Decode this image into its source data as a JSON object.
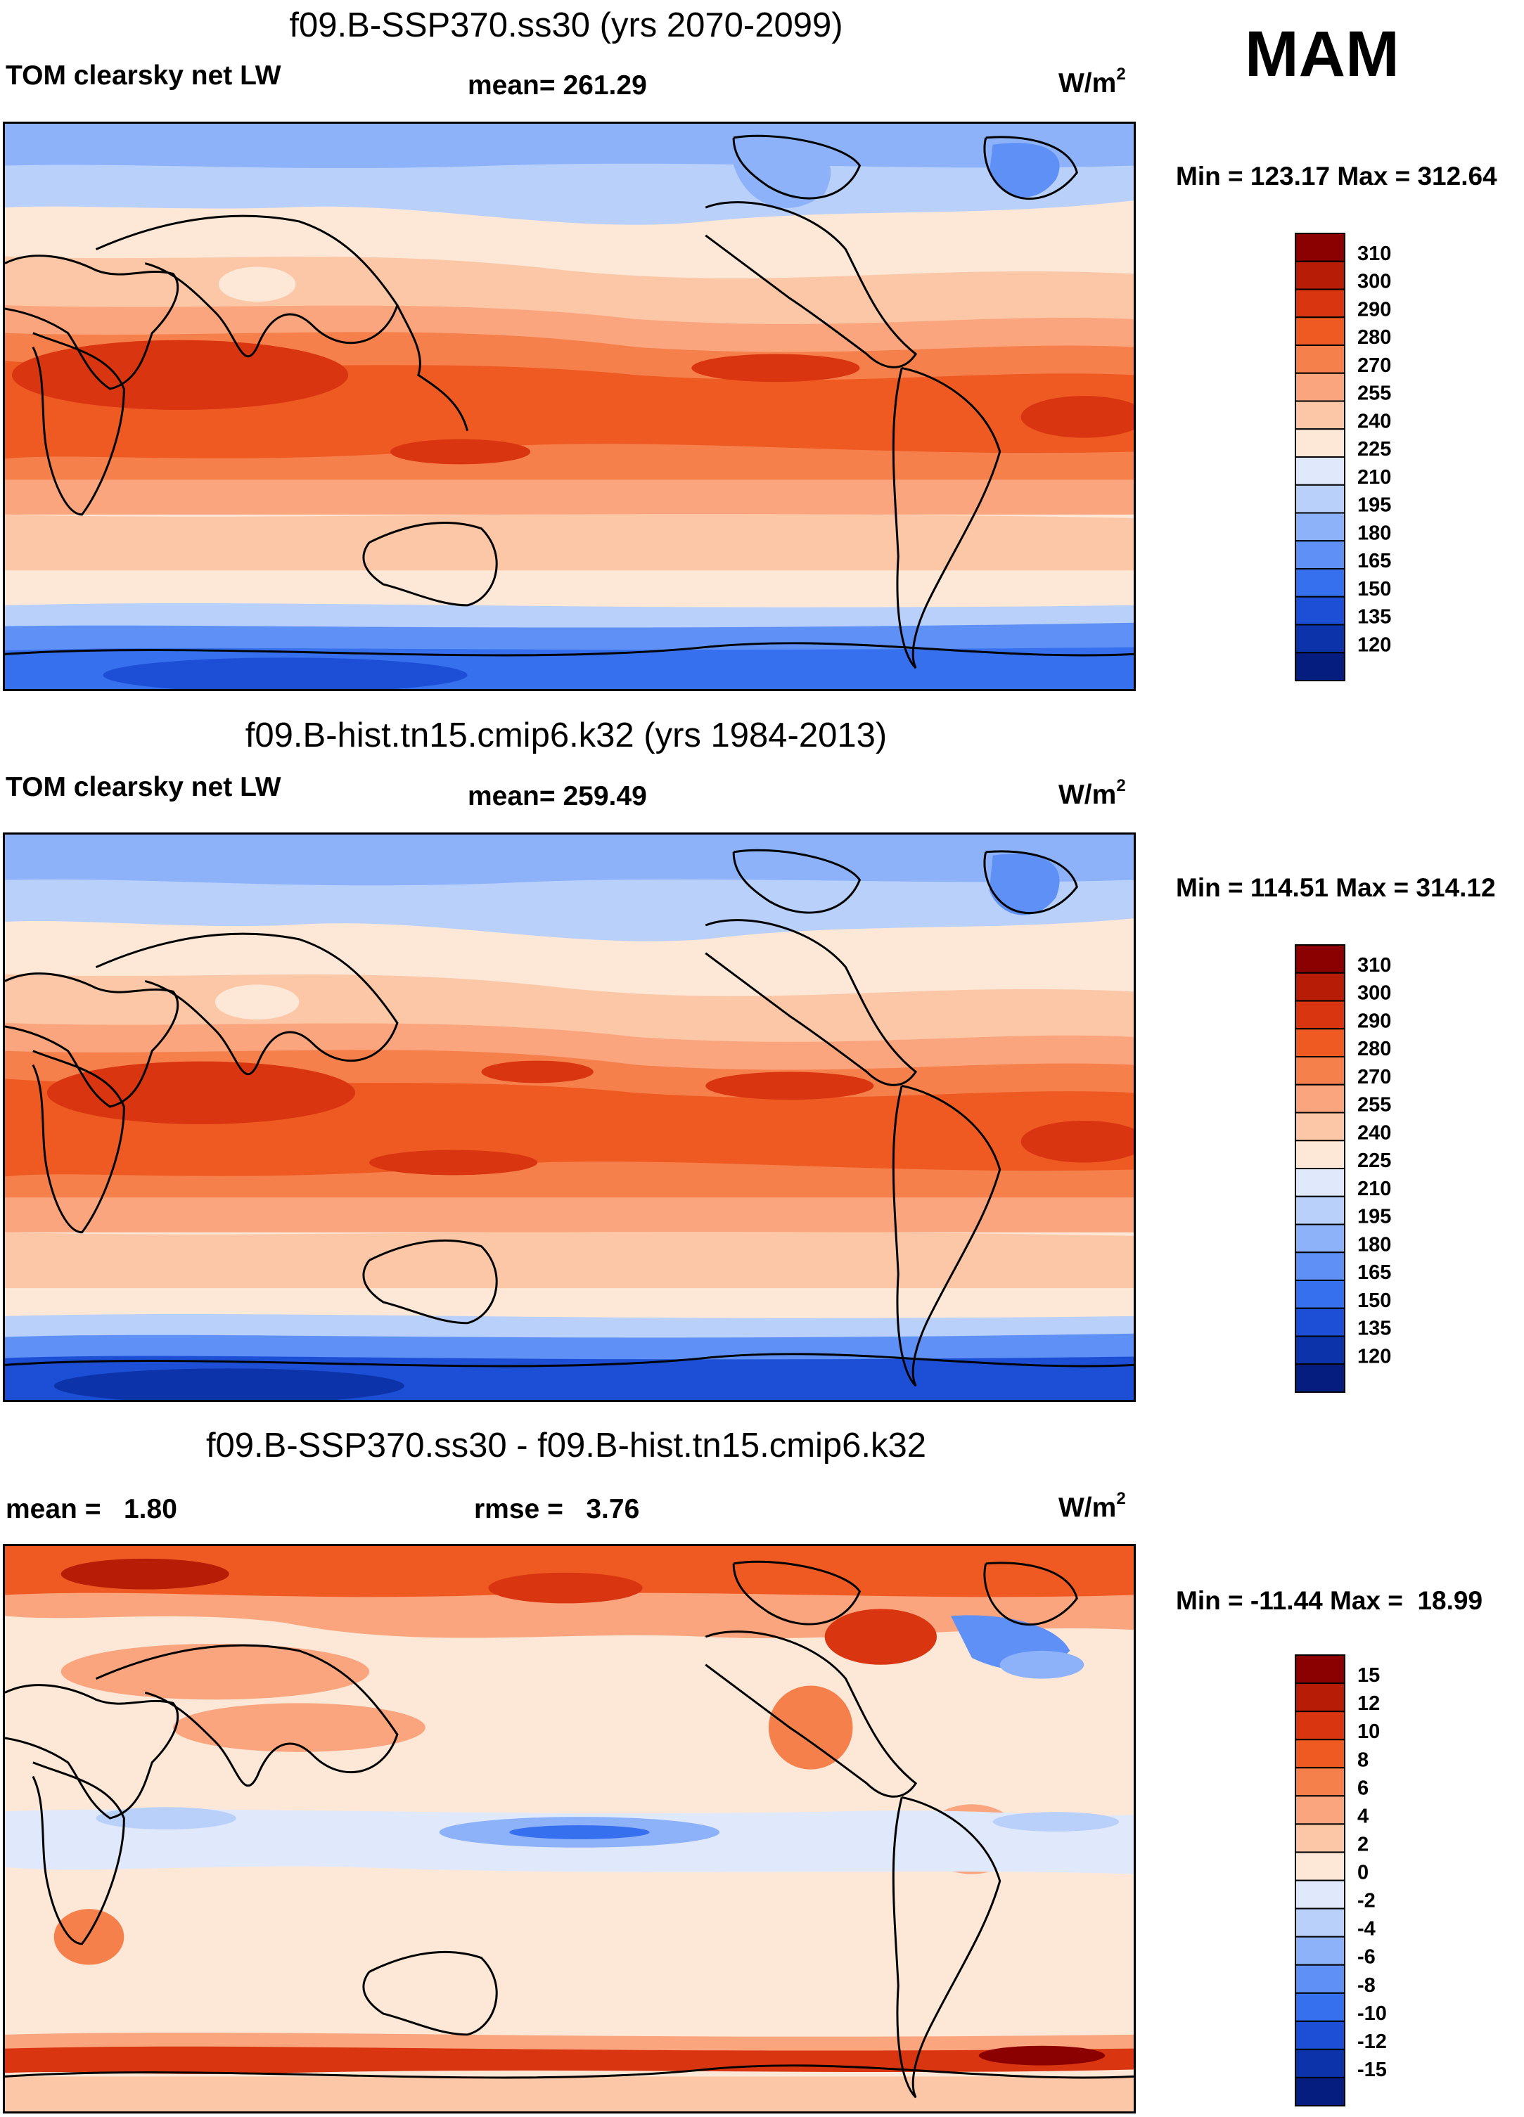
{
  "season": "MAM",
  "panels": [
    {
      "title": "f09.B-SSP370.ss30 (yrs 2070-2099)",
      "left_label": "TOM clearsky net LW",
      "center_label": "mean= 261.29",
      "units": "W/m",
      "units_sup": "2",
      "minmax": "Min = 123.17 Max = 312.64",
      "colorbar": {
        "levels": [
          "310",
          "300",
          "290",
          "280",
          "270",
          "255",
          "240",
          "225",
          "210",
          "195",
          "180",
          "165",
          "150",
          "135",
          "120"
        ],
        "colors_top_to_bottom": [
          "#8b0000",
          "#b71c06",
          "#d93510",
          "#ef5a23",
          "#f6804b",
          "#fba57f",
          "#fcc7a7",
          "#fde8d8",
          "#dfe9fb",
          "#b9d0fb",
          "#8db2fa",
          "#5f90f5",
          "#3670ee",
          "#1d4fd6",
          "#0c33a9",
          "#051d7e"
        ]
      },
      "chart_data": {
        "type": "contour-map",
        "variable": "TOM clearsky net LW",
        "mean": 261.29,
        "min": 123.17,
        "max": 312.64
      }
    },
    {
      "title": "f09.B-hist.tn15.cmip6.k32 (yrs 1984-2013)",
      "left_label": "TOM clearsky net LW",
      "center_label": "mean= 259.49",
      "units": "W/m",
      "units_sup": "2",
      "minmax": "Min = 114.51 Max = 314.12",
      "colorbar": {
        "levels": [
          "310",
          "300",
          "290",
          "280",
          "270",
          "255",
          "240",
          "225",
          "210",
          "195",
          "180",
          "165",
          "150",
          "135",
          "120"
        ],
        "colors_top_to_bottom": [
          "#8b0000",
          "#b71c06",
          "#d93510",
          "#ef5a23",
          "#f6804b",
          "#fba57f",
          "#fcc7a7",
          "#fde8d8",
          "#dfe9fb",
          "#b9d0fb",
          "#8db2fa",
          "#5f90f5",
          "#3670ee",
          "#1d4fd6",
          "#0c33a9",
          "#051d7e"
        ]
      },
      "chart_data": {
        "type": "contour-map",
        "variable": "TOM clearsky net LW",
        "mean": 259.49,
        "min": 114.51,
        "max": 314.12
      }
    },
    {
      "title": "f09.B-SSP370.ss30 - f09.B-hist.tn15.cmip6.k32",
      "left_label": "mean =   1.80",
      "center_label": "rmse =   3.76",
      "units": "W/m",
      "units_sup": "2",
      "minmax": "Min = -11.44 Max =  18.99",
      "colorbar": {
        "levels": [
          "15",
          "12",
          "10",
          "8",
          "6",
          "4",
          "2",
          "0",
          "-2",
          "-4",
          "-6",
          "-8",
          "-10",
          "-12",
          "-15"
        ],
        "colors_top_to_bottom": [
          "#8b0000",
          "#b71c06",
          "#d93510",
          "#ef5a23",
          "#f6804b",
          "#fba57f",
          "#fcc7a7",
          "#fde8d8",
          "#dfe9fb",
          "#b9d0fb",
          "#8db2fa",
          "#5f90f5",
          "#3670ee",
          "#1d4fd6",
          "#0c33a9",
          "#051d7e"
        ]
      },
      "chart_data": {
        "type": "contour-map-difference",
        "mean": 1.8,
        "rmse": 3.76,
        "min": -11.44,
        "max": 18.99
      }
    }
  ]
}
